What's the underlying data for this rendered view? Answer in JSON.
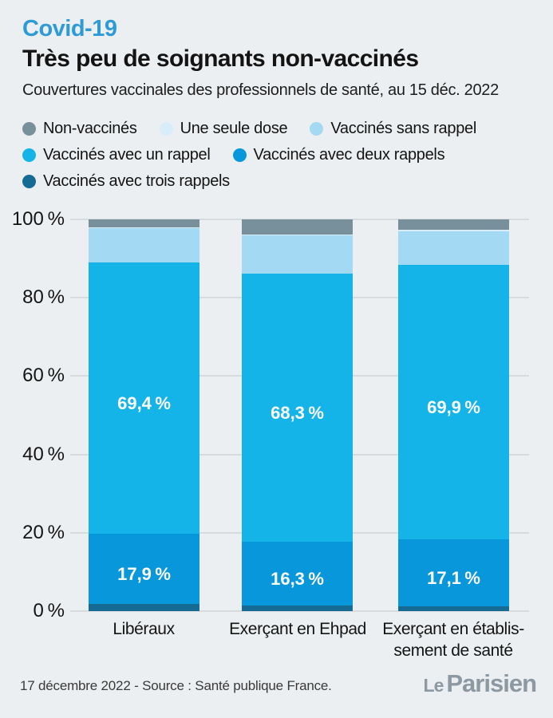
{
  "header": {
    "kicker": "Covid-19",
    "title": "Très peu de soignants non-vaccinés",
    "subtitle": "Couvertures vaccinales des professionnels de santé, au 15 déc. 2022"
  },
  "colors": {
    "background": "#ECEFF1",
    "kicker": "#2E9BD7",
    "gridline": "#D7DBDE",
    "logo": "#8C98A2",
    "non_vaccines": "#78909C",
    "une_seule_dose": "#D9ECF9",
    "sans_rappel": "#A4D9F4",
    "un_rappel": "#14B4E9",
    "deux_rappels": "#0897DA",
    "trois_rappels": "#166B95"
  },
  "legend": {
    "items": [
      {
        "label": "Non-vaccinés",
        "color": "#78909C"
      },
      {
        "label": "Une seule dose",
        "color": "#D9ECF9"
      },
      {
        "label": "Vaccinés sans rappel",
        "color": "#A4D9F4"
      },
      {
        "label": "Vaccinés avec un rappel",
        "color": "#14B4E9"
      },
      {
        "label": "Vaccinés avec deux rappels",
        "color": "#0897DA"
      },
      {
        "label": "Vaccinés avec trois rappels",
        "color": "#166B95"
      }
    ]
  },
  "chart_data": {
    "type": "bar",
    "subtype": "stacked-percentage",
    "title": "Couvertures vaccinales des professionnels de santé, au 15 déc. 2022",
    "categories": [
      "Libéraux",
      "Exerçant en Ehpad",
      "Exerçant en établis-\nsement de santé"
    ],
    "series": [
      {
        "name": "Vaccinés avec trois rappels",
        "color": "#166B95",
        "values": [
          1.8,
          1.5,
          1.3
        ],
        "labels": null
      },
      {
        "name": "Vaccinés avec deux rappels",
        "color": "#0897DA",
        "values": [
          17.9,
          16.3,
          17.1
        ],
        "labels": [
          "17,9 %",
          "16,3 %",
          "17,1 %"
        ]
      },
      {
        "name": "Vaccinés avec un rappel",
        "color": "#14B4E9",
        "values": [
          69.4,
          68.3,
          69.9
        ],
        "labels": [
          "69,4 %",
          "68,3 %",
          "69,9 %"
        ]
      },
      {
        "name": "Vaccinés sans rappel",
        "color": "#A4D9F4",
        "values": [
          8.6,
          9.8,
          8.7
        ],
        "labels": null
      },
      {
        "name": "Une seule dose",
        "color": "#D9ECF9",
        "values": [
          0.3,
          0.3,
          0.3
        ],
        "labels": null
      },
      {
        "name": "Non-vaccinés",
        "color": "#78909C",
        "values": [
          2.0,
          3.8,
          2.7
        ],
        "labels": null
      }
    ],
    "y_ticks": [
      "0 %",
      "20 %",
      "40 %",
      "60 %",
      "80 %",
      "100 %"
    ],
    "ylim": [
      0,
      100
    ],
    "grid": true,
    "legend_position": "top"
  },
  "footer": {
    "source": "17 décembre 2022 - Source : Santé publique France.",
    "logo_le": "Le",
    "logo_parisien": "Parisien"
  }
}
